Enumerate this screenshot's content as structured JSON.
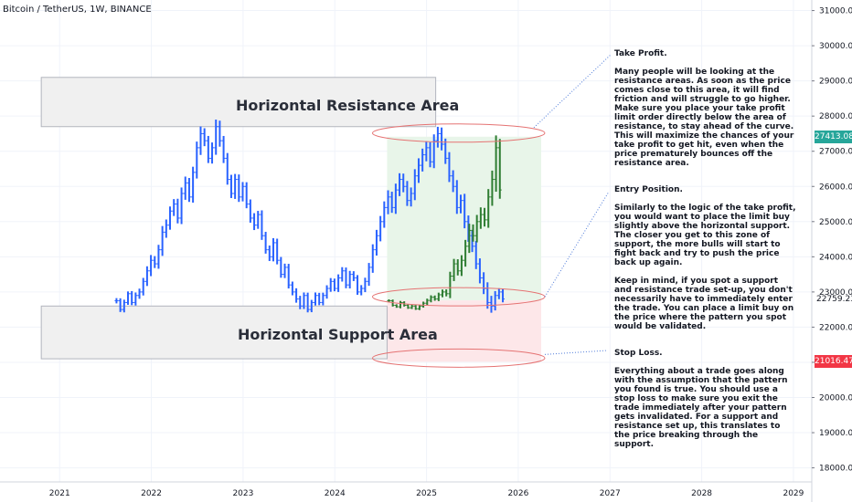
{
  "header": {
    "title": "Bitcoin / TetherUS, 1W, BINANCE"
  },
  "zones": {
    "resistance_label": "Horizontal Resistance Area",
    "support_label": "Horizontal Support Area"
  },
  "notes": [
    {
      "title": "Take Profit.",
      "body": "Many people will be looking at the resistance areas. As soon as the price comes close to this area, it will find friction and will struggle to go higher. Make sure you place your take profit limit order directly below the area of resistance, to stay ahead of the curve. This will maximize the chances of your take profit to get hit, even when the price prematurely bounces off the resistance area."
    },
    {
      "title": "Entry Position.",
      "body": "Similarly to the logic of the take profit, you would want to place the limit buy slightly above the horizontal support. The closer you get to this zone of support, the more bulls will start to fight back and try to push the price back up again.\n\nKeep in mind, if you spot a support and resistance trade set-up, you don't necessarily have to immediately enter the trade. You can place a limit buy on the price where the pattern you spot would be validated."
    },
    {
      "title": "Stop Loss.",
      "body": "Everything about a trade goes along with the assumption that the pattern you found is true. You should use a stop loss to make sure you exit the trade immediately after your pattern gets invalidated. For a support and resistance set up, this translates to the price breaking through the support."
    }
  ],
  "price_badges": [
    {
      "value": "27413.08",
      "price": 27413.08,
      "color": "#26a69a"
    },
    {
      "value": "21016.47",
      "price": 21016.47,
      "color": "#f23645"
    }
  ],
  "price_label": {
    "value": "22759.23",
    "price": 22759.23
  },
  "colors": {
    "historical_bars": "#2962ff",
    "projected_bars": "#2e7d32",
    "profit_zone": "#e8f5e9",
    "loss_zone": "#fde7e9",
    "ellipse": "#e57373",
    "zone_box": "#f0f0f0",
    "grid": "#f0f3fa",
    "axis_text": "#131722"
  },
  "chart_data": {
    "type": "ohlc",
    "title": "Bitcoin / TetherUS, 1W, BINANCE",
    "y_ticks": [
      18000,
      19000,
      20000,
      21000,
      22000,
      23000,
      24000,
      25000,
      26000,
      27000,
      28000,
      29000,
      30000,
      31000
    ],
    "y_tick_labels": [
      "18000.00",
      "19000.00",
      "20000.00",
      "21000.00",
      "22000.00",
      "23000.00",
      "24000.00",
      "25000.00",
      "26000.00",
      "27000.00",
      "28000.00",
      "29000.00",
      "30000.00",
      "31000.00"
    ],
    "ylim": [
      17600,
      31300
    ],
    "x_ticks": [
      2021,
      2022,
      2023,
      2024,
      2025,
      2026,
      2027,
      2028,
      2029
    ],
    "x_tick_labels": [
      "2021",
      "2022",
      "2023",
      "2024",
      "2025",
      "2026",
      "2027",
      "2028",
      "2029"
    ],
    "xlim": [
      2020.35,
      2029.2
    ],
    "resistance_area": [
      27700,
      29100
    ],
    "support_area": [
      21100,
      22600
    ],
    "take_profit_level": 27413.08,
    "entry_level": 22759.23,
    "stop_loss_level": 21016.47,
    "projection_x": [
      2024.57,
      2026.25
    ],
    "historical": {
      "x_start": 2021.62,
      "x_step": 0.0417,
      "closes": [
        22750,
        22500,
        22700,
        22950,
        22700,
        22900,
        23000,
        23300,
        23600,
        23900,
        23800,
        24200,
        24700,
        24900,
        25300,
        25500,
        25100,
        25800,
        26100,
        25700,
        26400,
        27100,
        27500,
        27300,
        26800,
        27100,
        27700,
        27300,
        26800,
        26200,
        25800,
        26200,
        25700,
        26000,
        25500,
        25100,
        24900,
        25200,
        24600,
        24200,
        24000,
        24400,
        23900,
        23500,
        23700,
        23200,
        23000,
        22800,
        22600,
        22900,
        22500,
        22700,
        22900,
        22700,
        22900,
        23100,
        23300,
        23100,
        23400,
        23600,
        23200,
        23500,
        23400,
        23000,
        23100,
        23300,
        23700,
        24200,
        24600,
        25000,
        25400,
        25700,
        25400,
        25900,
        26200,
        26000,
        25600,
        25800,
        26300,
        26600,
        26900,
        27100,
        26700,
        27300,
        27500,
        27200,
        26800,
        26300,
        26000,
        25400,
        25600,
        25000,
        24600,
        24300,
        23800,
        23400,
        23100,
        22700,
        22600,
        22900,
        23000,
        22800
      ],
      "ranges": [
        300,
        280,
        320,
        260,
        300,
        340,
        380,
        400,
        520,
        600,
        480,
        560,
        700,
        640,
        520,
        560,
        600,
        680,
        720,
        560,
        640,
        700,
        820,
        620,
        540,
        600,
        800,
        680,
        540,
        600,
        520,
        620,
        560,
        500,
        480,
        520,
        560,
        420,
        480,
        440,
        480,
        520,
        460,
        380,
        420,
        400,
        380,
        420,
        360,
        340,
        320,
        300,
        340,
        300,
        320,
        360,
        380,
        320,
        400,
        420,
        380,
        400,
        360,
        320,
        380,
        420,
        500,
        620,
        660,
        640,
        700,
        760,
        600,
        720,
        700,
        660,
        620,
        680,
        760,
        800,
        700,
        740,
        620,
        720,
        780,
        700,
        640,
        700,
        640,
        720,
        660,
        760,
        700,
        660,
        600,
        620,
        640,
        700,
        760,
        500,
        420,
        380
      ]
    },
    "projected": {
      "x_start": 2024.59,
      "x_step": 0.0417,
      "closes": [
        22750,
        22620,
        22580,
        22700,
        22620,
        22550,
        22600,
        22520,
        22600,
        22680,
        22760,
        22850,
        22800,
        22920,
        23000,
        22950,
        23450,
        23800,
        23600,
        23900,
        24300,
        24750,
        24600,
        25000,
        25200,
        25050,
        25700,
        26200,
        27100,
        25900
      ],
      "ranges": [
        160,
        140,
        120,
        180,
        140,
        120,
        140,
        120,
        140,
        180,
        200,
        220,
        200,
        240,
        280,
        300,
        500,
        560,
        520,
        580,
        720,
        760,
        680,
        760,
        820,
        760,
        900,
        1000,
        1400,
        1000
      ]
    }
  }
}
